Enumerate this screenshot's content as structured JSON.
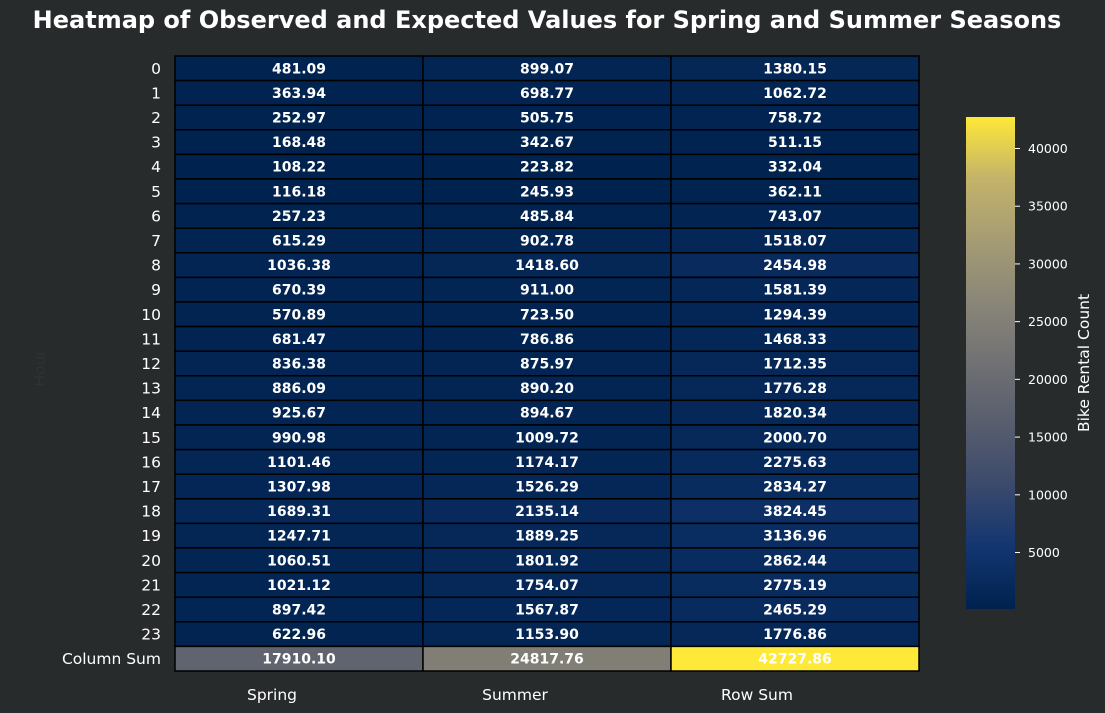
{
  "chart_data": {
    "type": "heatmap",
    "title": "Heatmap of Observed and Expected Values for Spring and Summer Seasons",
    "ylabel": "Hour",
    "columns": [
      "Spring",
      "Summer",
      "Row Sum"
    ],
    "rows": [
      "0",
      "1",
      "2",
      "3",
      "4",
      "5",
      "6",
      "7",
      "8",
      "9",
      "10",
      "11",
      "12",
      "13",
      "14",
      "15",
      "16",
      "17",
      "18",
      "19",
      "20",
      "21",
      "22",
      "23",
      "Column Sum"
    ],
    "values": [
      [
        481.09,
        899.07,
        1380.15
      ],
      [
        363.94,
        698.77,
        1062.72
      ],
      [
        252.97,
        505.75,
        758.72
      ],
      [
        168.48,
        342.67,
        511.15
      ],
      [
        108.22,
        223.82,
        332.04
      ],
      [
        116.18,
        245.93,
        362.11
      ],
      [
        257.23,
        485.84,
        743.07
      ],
      [
        615.29,
        902.78,
        1518.07
      ],
      [
        1036.38,
        1418.6,
        2454.98
      ],
      [
        670.39,
        911.0,
        1581.39
      ],
      [
        570.89,
        723.5,
        1294.39
      ],
      [
        681.47,
        786.86,
        1468.33
      ],
      [
        836.38,
        875.97,
        1712.35
      ],
      [
        886.09,
        890.2,
        1776.28
      ],
      [
        925.67,
        894.67,
        1820.34
      ],
      [
        990.98,
        1009.72,
        2000.7
      ],
      [
        1101.46,
        1174.17,
        2275.63
      ],
      [
        1307.98,
        1526.29,
        2834.27
      ],
      [
        1689.31,
        2135.14,
        3824.45
      ],
      [
        1247.71,
        1889.25,
        3136.96
      ],
      [
        1060.51,
        1801.92,
        2862.44
      ],
      [
        1021.12,
        1754.07,
        2775.19
      ],
      [
        897.42,
        1567.87,
        2465.29
      ],
      [
        622.96,
        1153.9,
        1776.86
      ],
      [
        17910.1,
        24817.76,
        42727.86
      ]
    ],
    "colorbar": {
      "label": "Bike Rental Count",
      "colormap": "cividis",
      "range": [
        108.22,
        42727.86
      ],
      "ticks": [
        5000,
        10000,
        15000,
        20000,
        25000,
        30000,
        35000,
        40000
      ]
    },
    "grid": false
  },
  "colors": {
    "background": "#282b2c",
    "cell_border": "#000000",
    "text": "#ffffff"
  }
}
